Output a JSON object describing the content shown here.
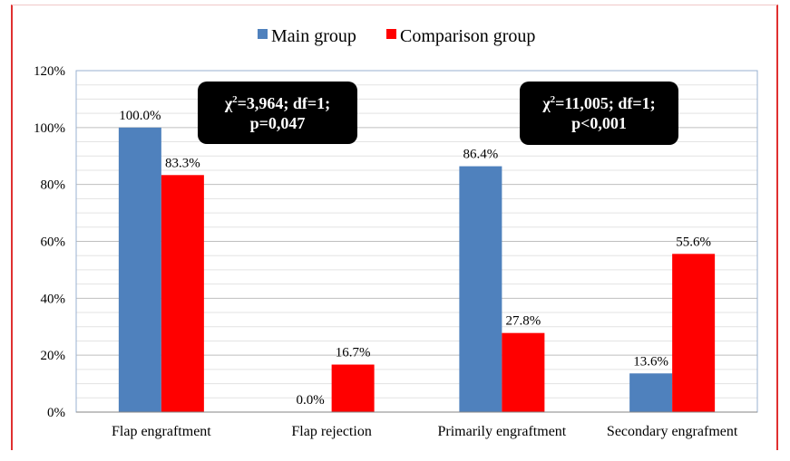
{
  "chart_data": {
    "type": "bar",
    "categories": [
      "Flap engraftment",
      "Flap rejection",
      "Primarily engraftment",
      "Secondary engrafment"
    ],
    "series": [
      {
        "name": "Main group",
        "color": "#4f81bd",
        "values": [
          100.0,
          0.0,
          86.4,
          13.6
        ],
        "labels": [
          "100.0%",
          "0.0%",
          "86.4%",
          "13.6%"
        ]
      },
      {
        "name": "Comparison group",
        "color": "#ff0000",
        "values": [
          83.3,
          16.7,
          27.8,
          55.6
        ],
        "labels": [
          "83.3%",
          "16.7%",
          "27.8%",
          "55.6%"
        ]
      }
    ],
    "ylim": [
      0,
      120
    ],
    "yticks": [
      "0%",
      "20%",
      "40%",
      "60%",
      "80%",
      "100%",
      "120%"
    ],
    "legend_position": "top-center",
    "grid": true,
    "annotations": [
      {
        "chi": "χ",
        "sup": "2",
        "line1": "=3,964; df=1;",
        "line2": "p=0,047"
      },
      {
        "chi": "χ",
        "sup": "2",
        "line1": "=11,005; df=1;",
        "line2": "p<0,001"
      }
    ]
  }
}
